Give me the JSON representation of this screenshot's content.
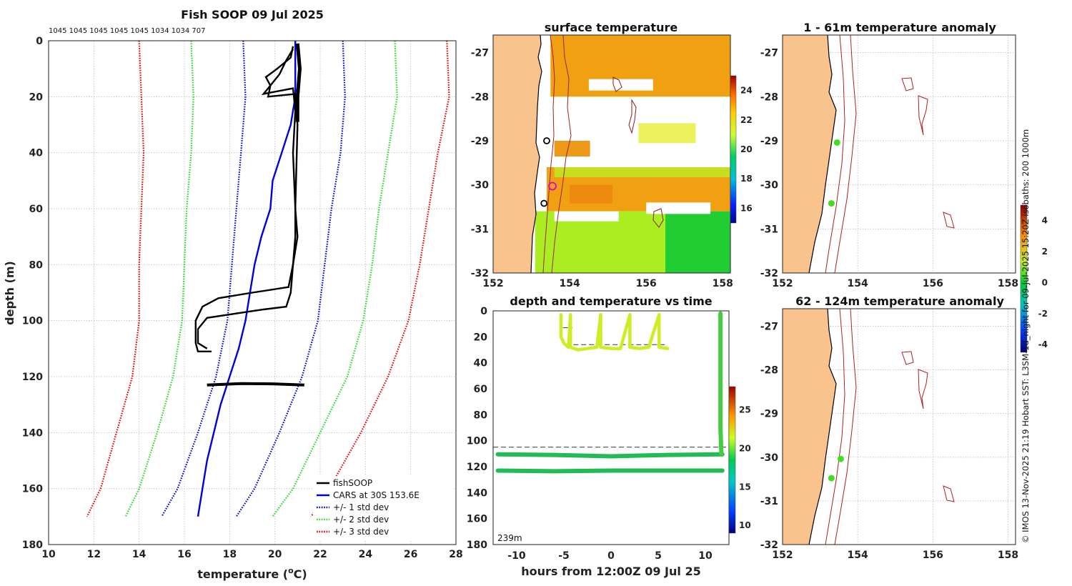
{
  "chart_data": [
    {
      "id": "profile",
      "type": "line",
      "title": "Fish SOOP 09 Jul 2025",
      "top_counts_text": "1045 1045 1045 1045 1045 1034 1034 707",
      "xlabel": "temperature (",
      "xlabel_unit": "o",
      "xlabel_end": "C)",
      "ylabel": "depth (m)",
      "xlim": [
        10,
        28
      ],
      "ylim": [
        0,
        180
      ],
      "xticks": [
        "10",
        "12",
        "14",
        "16",
        "18",
        "20",
        "22",
        "24",
        "26",
        "28"
      ],
      "yticks": [
        "0",
        "20",
        "40",
        "60",
        "80",
        "100",
        "120",
        "140",
        "160",
        "180"
      ],
      "legend": [
        "fishSOOP",
        "CARS at 30S 153.6E",
        "+/- 1 std dev",
        "+/- 2 std dev",
        "+/- 3 std dev"
      ],
      "series": {
        "cars": {
          "color": "#0000e6",
          "points": [
            [
              20.9,
              0
            ],
            [
              20.9,
              20
            ],
            [
              20.7,
              30
            ],
            [
              20.3,
              40
            ],
            [
              19.9,
              50
            ],
            [
              19.8,
              60
            ],
            [
              19.4,
              70
            ],
            [
              19.1,
              80
            ],
            [
              18.9,
              90
            ],
            [
              18.7,
              100
            ],
            [
              18.4,
              110
            ],
            [
              18.0,
              120
            ],
            [
              17.6,
              130
            ],
            [
              17.3,
              140
            ],
            [
              17.0,
              150
            ],
            [
              16.8,
              160
            ],
            [
              16.6,
              170
            ]
          ]
        },
        "std1_low": {
          "color": "#0000e6",
          "points": [
            [
              18.6,
              0
            ],
            [
              18.7,
              20
            ],
            [
              18.5,
              40
            ],
            [
              18.3,
              60
            ],
            [
              18.1,
              80
            ],
            [
              17.9,
              100
            ],
            [
              17.4,
              120
            ],
            [
              16.6,
              140
            ],
            [
              15.7,
              160
            ],
            [
              15.0,
              170
            ]
          ]
        },
        "std1_high": {
          "color": "#0000e6",
          "points": [
            [
              23.0,
              0
            ],
            [
              23.1,
              20
            ],
            [
              22.9,
              40
            ],
            [
              22.5,
              60
            ],
            [
              22.2,
              80
            ],
            [
              21.9,
              100
            ],
            [
              21.2,
              120
            ],
            [
              20.2,
              140
            ],
            [
              19.1,
              160
            ],
            [
              18.3,
              170
            ]
          ]
        },
        "std2_low": {
          "color": "#22dd22",
          "points": [
            [
              16.3,
              0
            ],
            [
              16.4,
              20
            ],
            [
              16.3,
              40
            ],
            [
              16.1,
              60
            ],
            [
              16.0,
              80
            ],
            [
              15.9,
              100
            ],
            [
              15.5,
              120
            ],
            [
              14.8,
              140
            ],
            [
              14.0,
              160
            ],
            [
              13.4,
              170
            ]
          ]
        },
        "std2_high": {
          "color": "#22dd22",
          "points": [
            [
              25.3,
              0
            ],
            [
              25.4,
              20
            ],
            [
              25.0,
              40
            ],
            [
              24.6,
              60
            ],
            [
              24.3,
              80
            ],
            [
              23.9,
              100
            ],
            [
              23.2,
              120
            ],
            [
              22.0,
              140
            ],
            [
              20.8,
              160
            ],
            [
              19.9,
              170
            ]
          ]
        },
        "std3_low": {
          "color": "#ee0000",
          "points": [
            [
              14.0,
              0
            ],
            [
              14.1,
              20
            ],
            [
              14.2,
              40
            ],
            [
              14.1,
              60
            ],
            [
              14.0,
              80
            ],
            [
              14.0,
              100
            ],
            [
              13.7,
              120
            ],
            [
              13.0,
              140
            ],
            [
              12.3,
              160
            ],
            [
              11.7,
              170
            ]
          ]
        },
        "std3_high": {
          "color": "#ee0000",
          "points": [
            [
              27.6,
              0
            ],
            [
              27.7,
              20
            ],
            [
              27.2,
              40
            ],
            [
              26.8,
              60
            ],
            [
              26.4,
              80
            ],
            [
              25.9,
              100
            ],
            [
              25.0,
              120
            ],
            [
              23.8,
              140
            ],
            [
              22.4,
              160
            ],
            [
              21.6,
              170
            ]
          ]
        },
        "fish_a": {
          "color": "#000000",
          "points": [
            [
              20.8,
              2
            ],
            [
              20.7,
              6
            ],
            [
              20.1,
              10
            ],
            [
              19.6,
              13
            ],
            [
              19.8,
              16
            ],
            [
              19.5,
              19
            ],
            [
              20.8,
              17
            ],
            [
              20.9,
              25
            ],
            [
              20.8,
              40
            ],
            [
              20.9,
              60
            ],
            [
              20.9,
              70
            ],
            [
              20.8,
              80
            ],
            [
              20.6,
              88
            ],
            [
              19.0,
              90
            ],
            [
              17.5,
              92
            ],
            [
              16.8,
              95
            ],
            [
              16.5,
              100
            ],
            [
              16.5,
              108
            ],
            [
              16.6,
              111
            ],
            [
              17.2,
              111
            ]
          ]
        },
        "fish_b": {
          "color": "#000000",
          "points": [
            [
              20.8,
              3
            ],
            [
              20.5,
              7
            ],
            [
              20.2,
              12
            ],
            [
              19.8,
              16
            ],
            [
              19.7,
              20
            ],
            [
              20.9,
              19
            ],
            [
              21.0,
              30
            ],
            [
              20.9,
              60
            ],
            [
              21.0,
              70
            ],
            [
              20.8,
              80
            ],
            [
              20.7,
              90
            ],
            [
              20.5,
              95
            ],
            [
              19.5,
              96
            ],
            [
              17.0,
              99
            ],
            [
              16.6,
              103
            ],
            [
              16.6,
              108
            ],
            [
              17.0,
              110
            ]
          ]
        },
        "fish_c": {
          "color": "#000000",
          "points": [
            [
              21.0,
              1
            ],
            [
              21.1,
              10
            ],
            [
              21.0,
              20
            ],
            [
              21.0,
              29
            ]
          ]
        },
        "fish_d": {
          "color": "#000000",
          "points": [
            [
              17.0,
              123
            ],
            [
              18.5,
              122.5
            ],
            [
              20.0,
              122.6
            ],
            [
              21.3,
              123
            ]
          ]
        }
      }
    },
    {
      "id": "sst_map",
      "type": "heatmap",
      "title": "surface temperature",
      "xticks": [
        "152",
        "154",
        "156",
        "158"
      ],
      "yticks": [
        "-27",
        "-28",
        "-29",
        "-30",
        "-31",
        "-32"
      ],
      "xlim": [
        152,
        158.2
      ],
      "ylim": [
        -32,
        -26.6
      ],
      "colorbar_ticks": [
        "16",
        "18",
        "20",
        "22",
        "24"
      ],
      "colorbar_range": [
        15,
        25
      ],
      "regions": [
        {
          "lon": [
            153.5,
            158.2
          ],
          "lat": [
            -28.0,
            -26.6
          ],
          "value": 23.0
        },
        {
          "lon": [
            153.5,
            158.2
          ],
          "lat": [
            -29.6,
            -28.0
          ],
          "value": null
        },
        {
          "lon": [
            153.4,
            158.2
          ],
          "lat": [
            -30.6,
            -29.6
          ],
          "value": 22.5
        },
        {
          "lon": [
            153.1,
            156.5
          ],
          "lat": [
            -32.0,
            -30.6
          ],
          "value": 21.0
        },
        {
          "lon": [
            156.5,
            158.2
          ],
          "lat": [
            -32.0,
            -30.6
          ],
          "value": 19.5
        }
      ],
      "stations": [
        {
          "lon": 153.4,
          "lat": -29.0,
          "style": "black"
        },
        {
          "lon": 153.55,
          "lat": -30.03,
          "style": "magenta"
        },
        {
          "lon": 153.33,
          "lat": -30.42,
          "style": "black"
        }
      ]
    },
    {
      "id": "anomaly_upper",
      "type": "heatmap",
      "title": "1 - 61m temperature anomaly",
      "xticks": [
        "152",
        "154",
        "156",
        "158"
      ],
      "yticks": [
        "-27",
        "-28",
        "-29",
        "-30",
        "-31",
        "-32"
      ],
      "xlim": [
        152,
        158.2
      ],
      "ylim": [
        -32,
        -26.6
      ],
      "colorbar_ticks": [
        "-4",
        "-2",
        "0",
        "2",
        "4"
      ],
      "colorbar_range": [
        -4.5,
        5
      ],
      "stations": [
        {
          "lon": 153.45,
          "lat": -29.04
        },
        {
          "lon": 153.3,
          "lat": -30.42
        }
      ]
    },
    {
      "id": "time_series",
      "type": "scatter",
      "title": "depth and temperature vs time",
      "xlabel": "hours from 12:00Z 09 Jul 25",
      "xlim": [
        -12.5,
        12.5
      ],
      "ylim": [
        0,
        180
      ],
      "xticks": [
        "-10",
        "-5",
        "0",
        "5",
        "10"
      ],
      "yticks": [
        "0",
        "20",
        "40",
        "60",
        "80",
        "100",
        "120",
        "140",
        "160",
        "180"
      ],
      "annotation": "239m",
      "colorbar_ticks": [
        "10",
        "15",
        "20",
        "25"
      ],
      "colorbar_range": [
        9,
        28
      ],
      "dashed_lines": [
        {
          "x": [
            -12.5,
            12.5
          ],
          "y": 105
        },
        {
          "x": [
            -5.1,
            -4.1
          ],
          "y": 13
        },
        {
          "x": [
            -4.0,
            6.0
          ],
          "y": 26
        }
      ],
      "series": [
        {
          "name": "bottom",
          "temp": 18.5,
          "points": [
            [
              -12,
              123
            ],
            [
              -6,
              123.5
            ],
            [
              0,
              123
            ],
            [
              6,
              123
            ],
            [
              11.8,
              123
            ]
          ]
        },
        {
          "name": "mid",
          "temp": 18.8,
          "points": [
            [
              -12,
              110.5
            ],
            [
              -6,
              111
            ],
            [
              0,
              112
            ],
            [
              6,
              111
            ],
            [
              11.8,
              110.5
            ]
          ]
        },
        {
          "name": "surface",
          "temp": 21.7,
          "points": [
            [
              -5.3,
              3
            ],
            [
              -5.3,
              20
            ],
            [
              -5.0,
              25
            ],
            [
              -4.5,
              28
            ],
            [
              -4.3,
              3
            ],
            [
              -4.3,
              28
            ],
            [
              -3.5,
              30
            ],
            [
              -2.5,
              29
            ],
            [
              -1.5,
              28
            ],
            [
              -1.1,
              3
            ],
            [
              -1.1,
              28
            ],
            [
              0,
              29
            ],
            [
              1.0,
              29
            ],
            [
              2.0,
              3
            ],
            [
              2.0,
              28
            ],
            [
              3.0,
              29
            ],
            [
              4.0,
              28
            ],
            [
              5.1,
              3
            ],
            [
              5.1,
              28
            ],
            [
              6.0,
              29
            ]
          ]
        },
        {
          "name": "ascent",
          "temp": 21.0,
          "points": [
            [
              11.6,
              2
            ],
            [
              11.6,
              50
            ],
            [
              11.6,
              90
            ],
            [
              11.7,
              110
            ]
          ]
        }
      ]
    },
    {
      "id": "anomaly_lower",
      "type": "heatmap",
      "title": "62 - 124m temperature anomaly",
      "xticks": [
        "152",
        "154",
        "156",
        "158"
      ],
      "yticks": [
        "-27",
        "-28",
        "-29",
        "-30",
        "-31",
        "-32"
      ],
      "xlim": [
        152,
        158.2
      ],
      "ylim": [
        -32,
        -26.6
      ],
      "stations": [
        {
          "lon": 153.55,
          "lat": -30.04
        },
        {
          "lon": 153.3,
          "lat": -30.48
        }
      ]
    }
  ],
  "side_caption": "© IMOS 13-Nov-2025 21:19 Hobart SST: L3SM-1d_night for 09-Jul-2025 15:20Z isobaths: 200 1000m",
  "colors": {
    "land": "#f9c38e",
    "isobath": "#b02020",
    "coast": "#000000"
  }
}
